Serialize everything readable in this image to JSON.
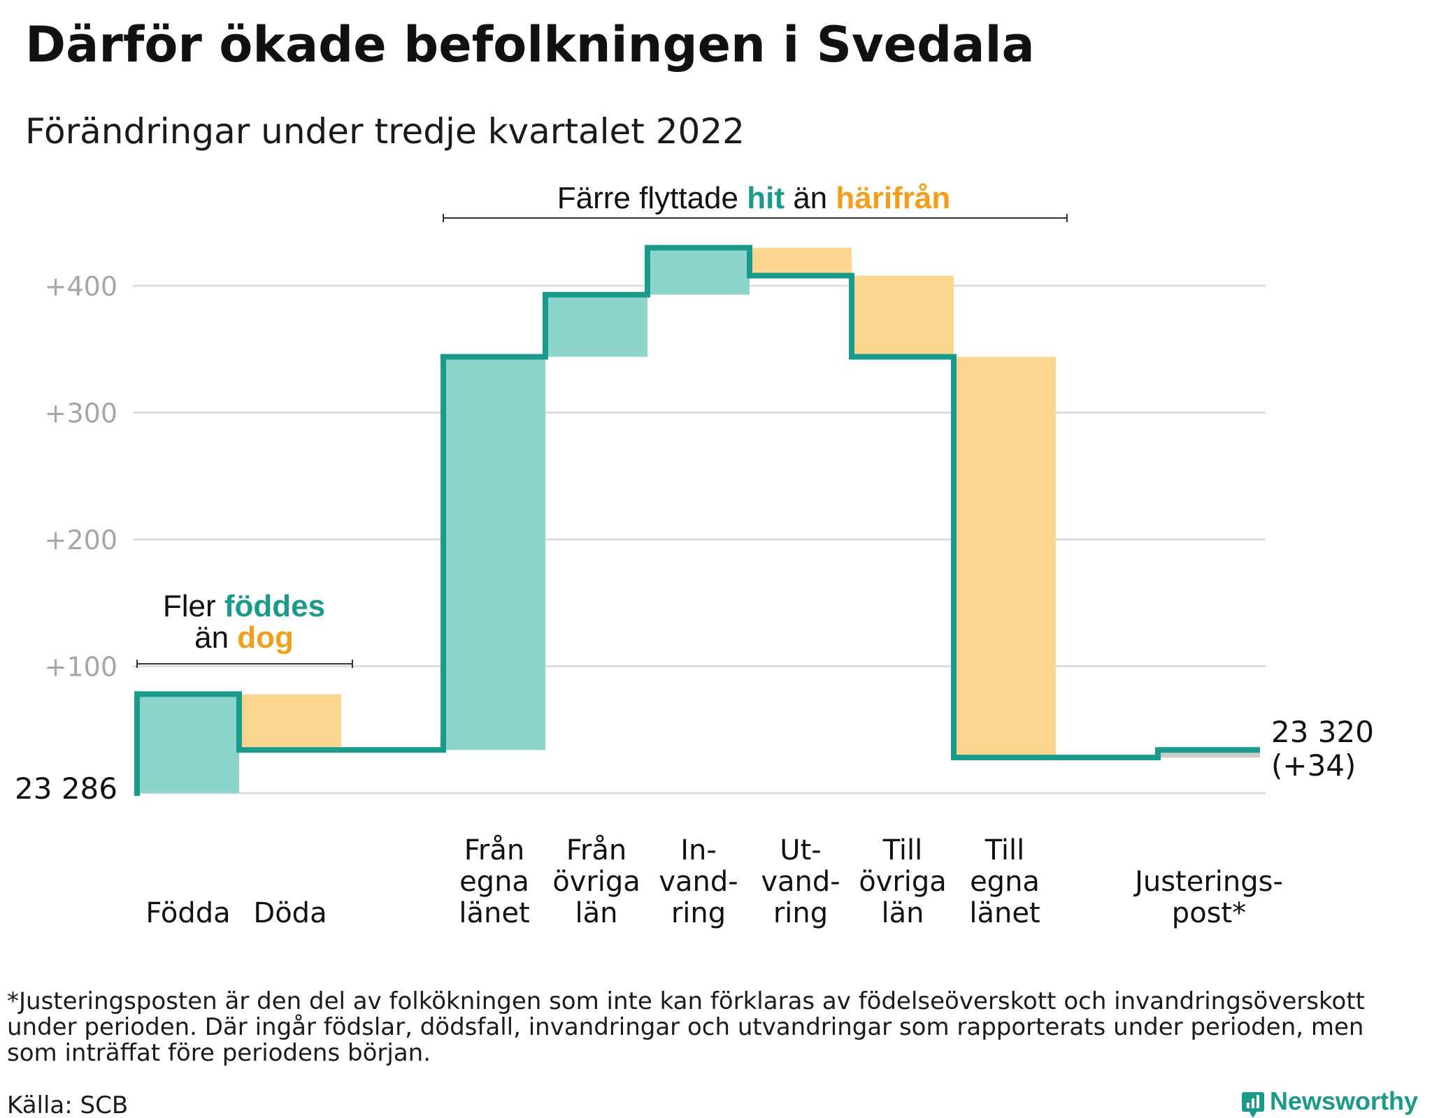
{
  "title": "Därför ökade befolkningen i Svedala",
  "subtitle": "Förändringar under tredje kvartalet 2022",
  "colors": {
    "increase": "#8dd5cb",
    "decrease": "#fad68f",
    "line": "#1a9a8a",
    "adjustment": "#cccccc",
    "grid": "#dddddd",
    "tick": "#a6a6a6",
    "accent_orange": "#f29e1b",
    "accent_teal": "#1a9a8a"
  },
  "chart_data": {
    "type": "waterfall",
    "base_label": "23 286",
    "end_label_value": "23 320",
    "end_label_change": "(+34)",
    "ylim": [
      0,
      430
    ],
    "yticks": [
      "+100",
      "+200",
      "+300",
      "+400"
    ],
    "ytick_values": [
      100,
      200,
      300,
      400
    ],
    "steps": [
      {
        "label_lines": [
          "Födda"
        ],
        "change": 78,
        "kind": "increase"
      },
      {
        "label_lines": [
          "Döda"
        ],
        "change": -44,
        "kind": "decrease"
      },
      {
        "label_lines": [],
        "change": 0,
        "kind": "gap"
      },
      {
        "label_lines": [
          "Från",
          "egna",
          "länet"
        ],
        "change": 310,
        "kind": "increase"
      },
      {
        "label_lines": [
          "Från",
          "övriga",
          "län"
        ],
        "change": 49,
        "kind": "increase"
      },
      {
        "label_lines": [
          "In-",
          "vand-",
          "ring"
        ],
        "change": 37,
        "kind": "increase"
      },
      {
        "label_lines": [
          "Ut-",
          "vand-",
          "ring"
        ],
        "change": -22,
        "kind": "decrease"
      },
      {
        "label_lines": [
          "Till",
          "övriga",
          "län"
        ],
        "change": -64,
        "kind": "decrease"
      },
      {
        "label_lines": [
          "Till",
          "egna",
          "länet"
        ],
        "change": -316,
        "kind": "decrease"
      },
      {
        "label_lines": [],
        "change": 0,
        "kind": "gap"
      },
      {
        "label_lines": [
          "Justerings-",
          "post*"
        ],
        "change": 6,
        "kind": "adjustment"
      }
    ],
    "annotations": {
      "births": {
        "line1": "Fler ",
        "line1_hl": "föddes",
        "line2": "än ",
        "line2_hl": "dog"
      },
      "migration": {
        "pre": "Färre flyttade ",
        "hl1": "hit",
        "mid": " än ",
        "hl2": "härifrån"
      }
    }
  },
  "footnote": [
    "*Justeringsposten är den del av folkökningen som inte kan förklaras av födelseöverskott och invandringsöverskott",
    "under perioden. Där ingår födslar, dödsfall, invandringar och utvandringar som rapporterats under perioden, men",
    "som inträffat före periodens början."
  ],
  "source": "Källa: SCB",
  "brand": "Newsworthy"
}
